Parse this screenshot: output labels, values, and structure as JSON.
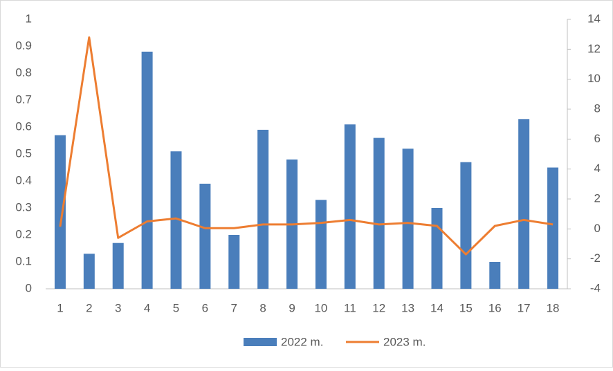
{
  "chart_data": {
    "type": "bar-line",
    "categories": [
      "1",
      "2",
      "3",
      "4",
      "5",
      "6",
      "7",
      "8",
      "9",
      "10",
      "11",
      "12",
      "13",
      "14",
      "15",
      "16",
      "17",
      "18"
    ],
    "series": [
      {
        "name": "2022 m.",
        "type": "bar",
        "color": "#4a7ebb",
        "axis": "y",
        "values": [
          0.57,
          0.13,
          0.17,
          0.88,
          0.51,
          0.39,
          0.2,
          0.59,
          0.48,
          0.33,
          0.61,
          0.56,
          0.52,
          0.3,
          0.47,
          0.1,
          0.63,
          0.45
        ]
      },
      {
        "name": "2023 m.",
        "type": "line",
        "color": "#ed7d31",
        "axis": "y2",
        "values": [
          0.15,
          12.8,
          -0.6,
          0.5,
          0.7,
          0.05,
          0.05,
          0.3,
          0.3,
          0.4,
          0.6,
          0.3,
          0.4,
          0.2,
          -1.7,
          0.2,
          0.6,
          0.3
        ]
      }
    ],
    "ylim": [
      0,
      1
    ],
    "yticks": [
      0,
      0.1,
      0.2,
      0.3,
      0.4,
      0.5,
      0.6,
      0.7,
      0.8,
      0.9,
      1
    ],
    "y2lim": [
      -4,
      14
    ],
    "y2ticks": [
      -4,
      -2,
      0,
      2,
      4,
      6,
      8,
      10,
      12,
      14
    ],
    "grid": false,
    "legend": "bottom"
  }
}
